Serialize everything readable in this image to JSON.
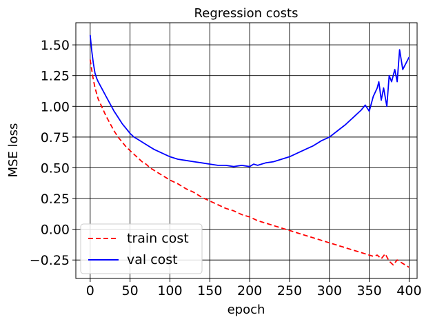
{
  "chart_data": {
    "type": "line",
    "title": "Regression costs",
    "xlabel": "epoch",
    "ylabel": "MSE loss",
    "xlim": [
      -18,
      410
    ],
    "ylim": [
      -0.4,
      1.68
    ],
    "grid": true,
    "legend_position": "bottom-left",
    "x_ticks": [
      0,
      50,
      100,
      150,
      200,
      250,
      300,
      350,
      400
    ],
    "y_ticks": [
      -0.25,
      0.0,
      0.25,
      0.5,
      0.75,
      1.0,
      1.25,
      1.5
    ],
    "x_tick_labels": [
      "0",
      "50",
      "100",
      "150",
      "200",
      "250",
      "300",
      "350",
      "400"
    ],
    "y_tick_labels": [
      "−0.25",
      "0.00",
      "0.25",
      "0.50",
      "0.75",
      "1.00",
      "1.25",
      "1.50"
    ],
    "series": [
      {
        "name": "train cost",
        "color": "#ff0000",
        "style": "dashed",
        "x": [
          0,
          3,
          6,
          10,
          15,
          20,
          25,
          30,
          35,
          40,
          45,
          50,
          55,
          60,
          65,
          70,
          75,
          80,
          85,
          90,
          95,
          100,
          110,
          120,
          130,
          140,
          150,
          160,
          170,
          180,
          190,
          200,
          210,
          220,
          230,
          240,
          250,
          260,
          270,
          280,
          290,
          300,
          310,
          320,
          330,
          340,
          350,
          355,
          360,
          365,
          370,
          375,
          380,
          385,
          390,
          395,
          400
        ],
        "y": [
          1.38,
          1.25,
          1.15,
          1.06,
          0.99,
          0.92,
          0.86,
          0.8,
          0.75,
          0.71,
          0.67,
          0.64,
          0.61,
          0.58,
          0.55,
          0.53,
          0.5,
          0.48,
          0.46,
          0.44,
          0.42,
          0.4,
          0.37,
          0.33,
          0.3,
          0.26,
          0.23,
          0.2,
          0.17,
          0.15,
          0.12,
          0.1,
          0.07,
          0.05,
          0.03,
          0.01,
          -0.01,
          -0.03,
          -0.05,
          -0.07,
          -0.09,
          -0.11,
          -0.13,
          -0.15,
          -0.17,
          -0.19,
          -0.21,
          -0.22,
          -0.21,
          -0.24,
          -0.2,
          -0.26,
          -0.29,
          -0.25,
          -0.27,
          -0.29,
          -0.31
        ]
      },
      {
        "name": "val cost",
        "color": "#0000ff",
        "style": "solid",
        "x": [
          0,
          2,
          4,
          6,
          8,
          10,
          15,
          20,
          25,
          30,
          35,
          40,
          45,
          50,
          55,
          60,
          70,
          80,
          90,
          100,
          110,
          120,
          130,
          140,
          150,
          160,
          170,
          180,
          190,
          200,
          205,
          210,
          220,
          230,
          240,
          250,
          260,
          270,
          280,
          290,
          300,
          310,
          320,
          330,
          340,
          345,
          350,
          355,
          360,
          362,
          365,
          368,
          372,
          375,
          378,
          382,
          385,
          388,
          392,
          396,
          400
        ],
        "y": [
          1.58,
          1.45,
          1.35,
          1.27,
          1.23,
          1.2,
          1.14,
          1.08,
          1.02,
          0.96,
          0.91,
          0.86,
          0.82,
          0.78,
          0.75,
          0.73,
          0.69,
          0.65,
          0.62,
          0.59,
          0.57,
          0.56,
          0.55,
          0.54,
          0.53,
          0.52,
          0.52,
          0.51,
          0.52,
          0.51,
          0.53,
          0.52,
          0.54,
          0.55,
          0.57,
          0.59,
          0.62,
          0.65,
          0.68,
          0.72,
          0.75,
          0.8,
          0.85,
          0.91,
          0.97,
          1.01,
          0.96,
          1.08,
          1.15,
          1.2,
          1.05,
          1.15,
          1.0,
          1.25,
          1.2,
          1.3,
          1.2,
          1.46,
          1.3,
          1.35,
          1.4
        ]
      }
    ]
  }
}
